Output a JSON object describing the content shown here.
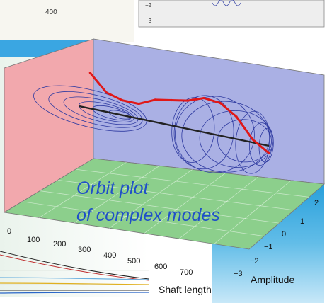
{
  "chart_data": {
    "type": "line",
    "title": "Orbit plot of complex modes",
    "title_lines": [
      "Orbit plot",
      "of complex modes"
    ],
    "xlabel": "Shaft length",
    "ylabel": "Amplitude",
    "x_ticks": [
      "100",
      "200",
      "300",
      "400",
      "500",
      "600",
      "700"
    ],
    "y_ticks": [
      "−3",
      "−2",
      "−1",
      "0",
      "1",
      "2"
    ],
    "grid": true,
    "colors": {
      "wall_left": "#f2a8ad",
      "wall_back": "#aab0e4",
      "floor": "#8ccf8c",
      "orbits": "#2e3aa0",
      "mode_path": "#e01818",
      "shaft_axis": "#222222",
      "title": "#2050c8",
      "colormap_top": "#1a98d8",
      "colormap_bottom": "#bfe4f8"
    },
    "series": [
      {
        "description": "red mode path",
        "x": [
          40,
          100,
          160,
          220,
          280,
          340,
          400,
          460,
          520,
          580,
          640,
          700
        ],
        "values": [
          2.4,
          1.3,
          1.0,
          1.0,
          1.5,
          1.7,
          1.9,
          2.3,
          2.2,
          1.5,
          0.2,
          -0.5
        ]
      },
      {
        "description": "shaft centerline",
        "x": [
          0,
          700
        ],
        "values": [
          0,
          0
        ]
      }
    ]
  },
  "background_fragments": {
    "top_left_tick": "400",
    "top_right_ticks": [
      "−2",
      "−3"
    ],
    "left_axis_ticks": [
      "0",
      "100",
      "200",
      "300",
      "400",
      "500"
    ]
  }
}
